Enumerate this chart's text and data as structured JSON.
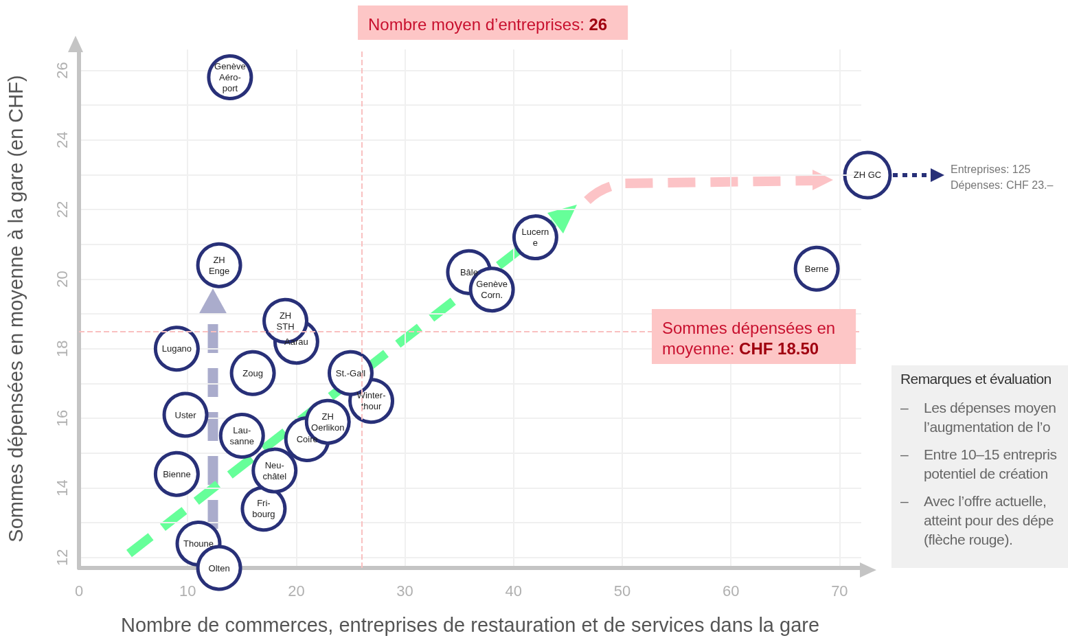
{
  "chart_data": {
    "type": "scatter",
    "xlabel": "Nombre de commerces, entreprises de restauration et de services dans la gare",
    "ylabel": "Sommes dépensées en moyenne à la gare (en CHF)",
    "xlim": [
      0,
      72
    ],
    "ylim": [
      11.7,
      26.6
    ],
    "xticks": [
      0,
      10,
      20,
      30,
      40,
      50,
      60,
      70
    ],
    "yticks": [
      12,
      {
        "value": 13,
        "label": null
      },
      14,
      {
        "value": 15,
        "label": null
      },
      16,
      {
        "value": 17,
        "label": null
      },
      18,
      {
        "value": 19,
        "label": null
      },
      20,
      {
        "value": 21,
        "label": null
      },
      22,
      {
        "value": 23,
        "label": null
      },
      24,
      {
        "value": 25,
        "label": null
      },
      26
    ],
    "grid": true,
    "marker": "circle",
    "color": "#283078",
    "x": [
      13.9,
      12.9,
      20.0,
      19.0,
      9.0,
      16.0,
      26.9,
      25.0,
      9.8,
      21.0,
      22.9,
      15.0,
      9.0,
      17.0,
      18.0,
      11.0,
      12.9,
      35.9,
      38.0,
      42.0,
      67.9
    ],
    "values": [
      25.8,
      20.4,
      18.2,
      18.8,
      18.0,
      17.3,
      16.5,
      17.3,
      16.1,
      15.4,
      15.9,
      15.5,
      14.4,
      13.4,
      14.5,
      12.4,
      11.7,
      20.2,
      19.7,
      21.2,
      20.3
    ],
    "value_labels": [
      "Genève\nAéro-\nport",
      "ZH\nEnge",
      "Aarau",
      "ZH\nSTH",
      "Lugano",
      "Zoug",
      "Winter-\nthour",
      "St.-Gall",
      "Uster",
      "Coire",
      "ZH\nOerlikon",
      "Lau-\nsanne",
      "Bienne",
      "Fri-\nbourg",
      "Neu-\nchâtel",
      "Thoune",
      "Olten",
      "Bâle",
      "Genève\nCorn.",
      "Lucern\ne",
      "Berne"
    ],
    "ref_lines": [
      {
        "axis": "x",
        "value": 26,
        "label": "Nombre moyen d’entreprises: 26",
        "color": "#f9c0c0",
        "line_style": "dashed"
      },
      {
        "axis": "y",
        "value": 18.5,
        "label": "Sommes dépensées en\nmoyenne: CHF 18.50",
        "color": "#f9c0c0",
        "line_style": "dashed"
      }
    ],
    "annotations": [
      "ZH GC",
      "Entreprises: 125\nDépenses: CHF 23.–",
      "Remarques et évaluation",
      "– Les dépenses moyen\nl’augmentation de l’o",
      "– Entre 10–15 entrepris\npotentiel de création",
      "– Avec l’offre actuelle,\natteint pour des dépe\n(flèche rouge)."
    ]
  }
}
